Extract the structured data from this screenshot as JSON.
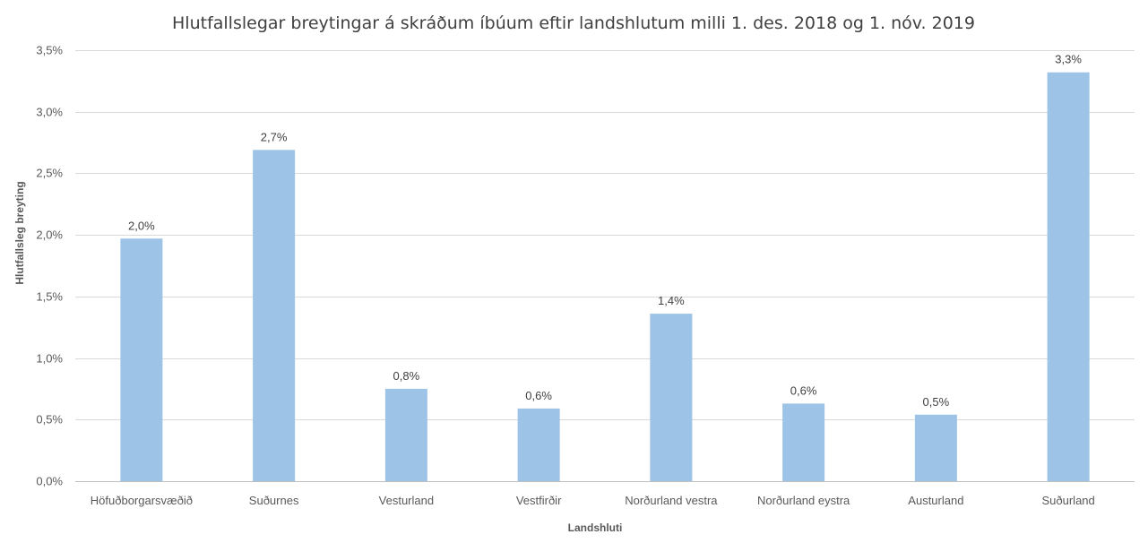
{
  "chart_data": {
    "type": "bar",
    "title": "Hlutfallslegar breytingar á skráðum íbúum eftir landshlutum milli 1. des. 2018 og 1. nóv. 2019",
    "xlabel": "Landshluti",
    "ylabel": "Hlutfallsleg breyting",
    "categories": [
      "Höfuðborgarsvæðið",
      "Suðurnes",
      "Vesturland",
      "Vestfirðir",
      "Norðurland vestra",
      "Norðurland eystra",
      "Austurland",
      "Suðurland"
    ],
    "values": [
      1.97,
      2.69,
      0.75,
      0.59,
      1.36,
      0.63,
      0.54,
      3.32
    ],
    "data_labels": [
      "2,0%",
      "2,7%",
      "0,8%",
      "0,6%",
      "1,4%",
      "0,6%",
      "0,5%",
      "3,3%"
    ],
    "ylim": [
      0,
      3.5
    ],
    "yticks": [
      0,
      0.5,
      1.0,
      1.5,
      2.0,
      2.5,
      3.0,
      3.5
    ],
    "ytick_labels": [
      "0,0%",
      "0,5%",
      "1,0%",
      "1,5%",
      "2,0%",
      "2,5%",
      "3,0%",
      "3,5%"
    ],
    "grid": true,
    "legend": "none",
    "bar_color": "#9dc3e6"
  }
}
